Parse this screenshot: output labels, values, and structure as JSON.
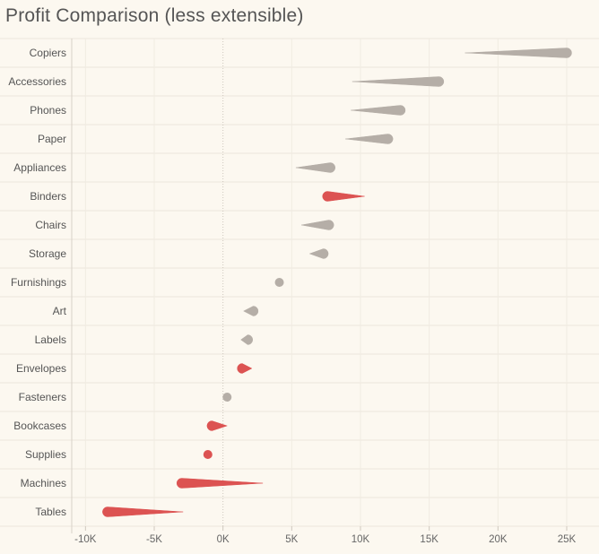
{
  "title": "Profit Comparison (less extensible)",
  "chart_data": {
    "type": "scatter",
    "title": "Profit Comparison (less extensible)",
    "xlabel": "",
    "ylabel": "",
    "xlim": [
      -11000,
      26500
    ],
    "x_ticks": [
      -10000,
      -5000,
      0,
      5000,
      10000,
      15000,
      20000,
      25000
    ],
    "x_tick_labels": [
      "-10K",
      "-5K",
      "0K",
      "5K",
      "10K",
      "15K",
      "20K",
      "25K"
    ],
    "grid": true,
    "colors": {
      "gray": "#b5aea7",
      "red": "#dc5352",
      "background": "#fcf8f0"
    },
    "categories": [
      "Copiers",
      "Accessories",
      "Phones",
      "Paper",
      "Appliances",
      "Binders",
      "Chairs",
      "Storage",
      "Furnishings",
      "Art",
      "Labels",
      "Envelopes",
      "Fasteners",
      "Bookcases",
      "Supplies",
      "Machines",
      "Tables"
    ],
    "series": [
      {
        "start": [
          17600,
          9400,
          9300,
          8900,
          5300,
          10300,
          5700,
          6300,
          4100,
          1500,
          1300,
          2100,
          300,
          300,
          -1100,
          2900,
          -2900
        ],
        "end": [
          25000,
          15700,
          12900,
          12000,
          7800,
          7600,
          7700,
          7300,
          4100,
          2200,
          1800,
          1400,
          300,
          -800,
          -1100,
          -3000,
          -8400
        ],
        "color": [
          "gray",
          "gray",
          "gray",
          "gray",
          "gray",
          "red",
          "gray",
          "gray",
          "gray",
          "gray",
          "gray",
          "red",
          "gray",
          "red",
          "red",
          "red",
          "red"
        ]
      }
    ]
  }
}
